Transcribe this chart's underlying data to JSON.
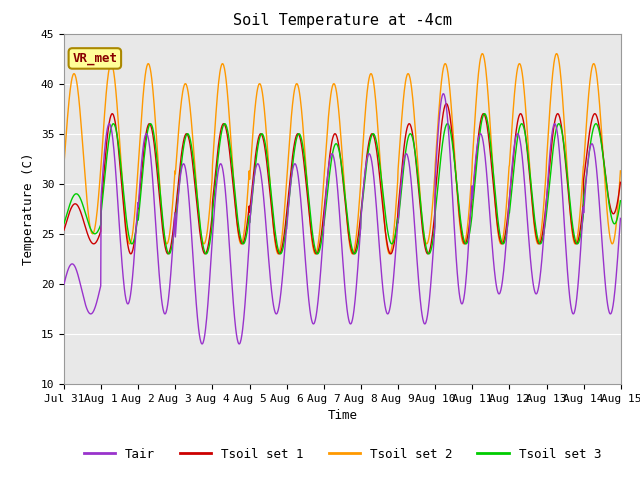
{
  "title": "Soil Temperature at -4cm",
  "xlabel": "Time",
  "ylabel": "Temperature (C)",
  "ylim": [
    10,
    45
  ],
  "xlim": [
    0,
    15
  ],
  "x_tick_labels": [
    "Jul 31",
    "Aug 1",
    "Aug 2",
    "Aug 3",
    "Aug 4",
    "Aug 5",
    "Aug 6",
    "Aug 7",
    "Aug 8",
    "Aug 9",
    "Aug 10",
    "Aug 11",
    "Aug 12",
    "Aug 13",
    "Aug 14",
    "Aug 15"
  ],
  "x_ticks": [
    0,
    1,
    2,
    3,
    4,
    5,
    6,
    7,
    8,
    9,
    10,
    11,
    12,
    13,
    14,
    15
  ],
  "y_ticks": [
    10,
    15,
    20,
    25,
    30,
    35,
    40,
    45
  ],
  "colors": {
    "Tair": "#9933cc",
    "Tsoil_set1": "#cc0000",
    "Tsoil_set2": "#ff9900",
    "Tsoil_set3": "#00cc00"
  },
  "legend_labels": [
    "Tair",
    "Tsoil set 1",
    "Tsoil set 2",
    "Tsoil set 3"
  ],
  "annotation_text": "VR_met",
  "annotation_box_color": "#ffff99",
  "annotation_box_edge": "#aa8800",
  "plot_area_color": "#e8e8e8",
  "grid_color": "white",
  "title_fontsize": 11,
  "axis_label_fontsize": 9,
  "tick_fontsize": 8,
  "legend_fontsize": 9,
  "tair_mins": [
    17,
    18,
    17,
    14,
    14,
    17,
    16,
    16,
    17,
    16,
    18,
    19,
    19,
    17,
    17
  ],
  "tair_maxs": [
    22,
    36,
    35,
    32,
    32,
    32,
    32,
    33,
    33,
    33,
    39,
    35,
    35,
    36,
    34
  ],
  "tsoil1_mins": [
    24,
    23,
    23,
    23,
    24,
    23,
    23,
    23,
    23,
    23,
    24,
    24,
    24,
    24,
    27
  ],
  "tsoil1_maxs": [
    28,
    37,
    36,
    35,
    36,
    35,
    35,
    35,
    35,
    36,
    38,
    37,
    37,
    37,
    37
  ],
  "tsoil2_mins": [
    25,
    24,
    24,
    24,
    24,
    23,
    23,
    23,
    23,
    24,
    24,
    24,
    24,
    24,
    24
  ],
  "tsoil2_maxs": [
    41,
    42,
    42,
    40,
    42,
    40,
    40,
    40,
    41,
    41,
    42,
    43,
    42,
    43,
    42
  ],
  "tsoil3_mins": [
    25,
    24,
    23,
    23,
    24,
    23,
    23,
    23,
    24,
    23,
    24,
    24,
    24,
    24,
    26
  ],
  "tsoil3_maxs": [
    29,
    36,
    36,
    35,
    36,
    35,
    35,
    34,
    35,
    35,
    36,
    37,
    36,
    36,
    36
  ],
  "tair_phase": 0.22,
  "tsoil1_phase": 0.3,
  "tsoil2_phase": 0.27,
  "tsoil3_phase": 0.33
}
